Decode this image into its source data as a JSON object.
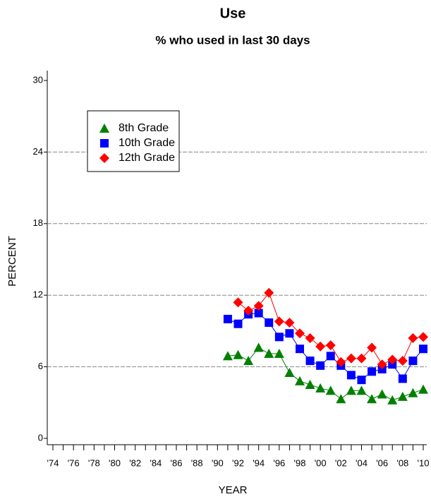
{
  "chart_data": {
    "type": "line",
    "title": "Use",
    "subtitle": "% who used in last 30 days",
    "x_label": "YEAR",
    "y_label": "PERCENT",
    "categories": [
      "'74",
      null,
      "'76",
      null,
      "'78",
      null,
      "'80",
      null,
      "'82",
      null,
      "'84",
      null,
      "'86",
      null,
      "'88",
      null,
      "'90",
      null,
      "'92",
      null,
      "'94",
      null,
      "'96",
      null,
      "'98",
      null,
      "'00",
      null,
      "'02",
      null,
      "'04",
      null,
      "'06",
      null,
      "'08",
      null,
      "'10"
    ],
    "series": [
      {
        "name": "8th Grade",
        "color": "#008000",
        "marker": "triangle",
        "values": [
          null,
          null,
          null,
          null,
          null,
          null,
          null,
          null,
          null,
          null,
          null,
          null,
          null,
          null,
          null,
          null,
          null,
          6.9,
          7.0,
          6.5,
          7.6,
          7.1,
          7.1,
          5.5,
          4.8,
          4.5,
          4.2,
          4.0,
          3.3,
          4.0,
          4.0,
          3.3,
          3.7,
          3.2,
          3.5,
          3.8,
          4.1
        ]
      },
      {
        "name": "10th Grade",
        "color": "#0000ff",
        "marker": "square",
        "values": [
          null,
          null,
          null,
          null,
          null,
          null,
          null,
          null,
          null,
          null,
          null,
          null,
          null,
          null,
          null,
          null,
          null,
          10.0,
          9.6,
          10.4,
          10.5,
          9.7,
          8.5,
          8.8,
          7.5,
          6.5,
          6.1,
          6.9,
          6.1,
          5.3,
          4.9,
          5.6,
          5.8,
          6.2,
          5.0,
          6.5,
          7.5
        ]
      },
      {
        "name": "12th Grade",
        "color": "#ff0000",
        "marker": "diamond",
        "values": [
          null,
          null,
          null,
          null,
          null,
          null,
          null,
          null,
          null,
          null,
          null,
          null,
          null,
          null,
          null,
          null,
          null,
          null,
          11.4,
          10.7,
          11.1,
          12.2,
          9.8,
          9.7,
          8.8,
          8.4,
          7.7,
          7.8,
          6.4,
          6.7,
          6.7,
          7.6,
          6.2,
          6.6,
          6.5,
          8.4,
          8.5
        ]
      }
    ],
    "ylim": [
      0,
      30
    ],
    "yticks": [
      0,
      6,
      12,
      18,
      24,
      30
    ],
    "grid": true,
    "legend": "upper-left"
  }
}
